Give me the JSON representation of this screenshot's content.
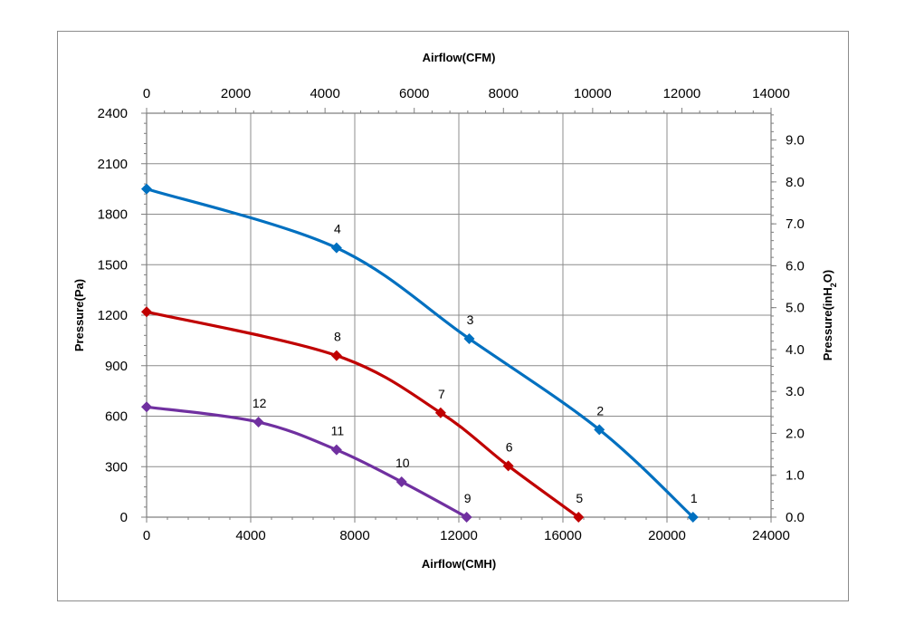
{
  "chart_data": {
    "type": "line",
    "x_bottom": {
      "label": "Airflow(CMH)",
      "range": [
        0,
        24000
      ],
      "ticks": [
        0,
        4000,
        8000,
        12000,
        16000,
        20000,
        24000
      ]
    },
    "x_top": {
      "label": "Airflow(CFM)",
      "range": [
        0,
        14000
      ],
      "ticks": [
        0,
        2000,
        4000,
        6000,
        8000,
        10000,
        12000,
        14000
      ]
    },
    "y_left": {
      "label": "Pressure(Pa)",
      "range": [
        0,
        2400
      ],
      "ticks": [
        0,
        300,
        600,
        900,
        1200,
        1500,
        1800,
        2100,
        2400
      ]
    },
    "y_right": {
      "label_main": "Pressure(inH",
      "label_sub": "2",
      "label_tail": "O)",
      "range": [
        0,
        9.64
      ],
      "ticks": [
        "0.0",
        "1.0",
        "2.0",
        "3.0",
        "4.0",
        "5.0",
        "6.0",
        "7.0",
        "8.0",
        "9.0"
      ]
    },
    "grid": true,
    "series": [
      {
        "color": "#0070c0",
        "points": [
          {
            "x": 0,
            "y": 1950,
            "label": ""
          },
          {
            "x": 7300,
            "y": 1600,
            "label": "4"
          },
          {
            "x": 12400,
            "y": 1060,
            "label": "3"
          },
          {
            "x": 17400,
            "y": 520,
            "label": "2"
          },
          {
            "x": 21000,
            "y": 0,
            "label": "1"
          }
        ]
      },
      {
        "color": "#c00000",
        "points": [
          {
            "x": 0,
            "y": 1220,
            "label": ""
          },
          {
            "x": 7300,
            "y": 960,
            "label": "8"
          },
          {
            "x": 11300,
            "y": 620,
            "label": "7"
          },
          {
            "x": 13900,
            "y": 305,
            "label": "6"
          },
          {
            "x": 16600,
            "y": 0,
            "label": "5"
          }
        ]
      },
      {
        "color": "#7030a0",
        "points": [
          {
            "x": 0,
            "y": 655,
            "label": ""
          },
          {
            "x": 4300,
            "y": 565,
            "label": "12"
          },
          {
            "x": 7300,
            "y": 400,
            "label": "11"
          },
          {
            "x": 9800,
            "y": 210,
            "label": "10"
          },
          {
            "x": 12300,
            "y": 0,
            "label": "9"
          }
        ]
      }
    ]
  }
}
